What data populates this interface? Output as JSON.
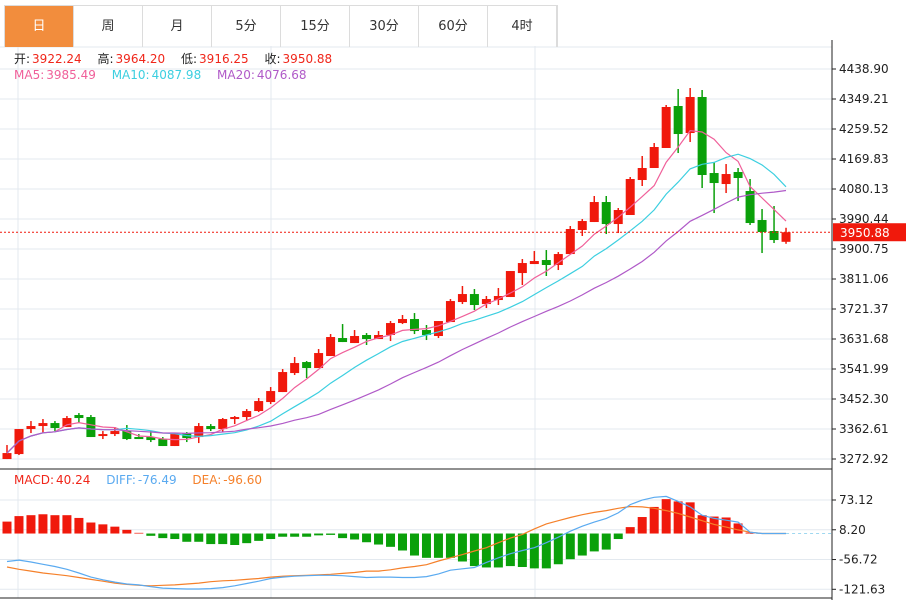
{
  "tabs": [
    "日",
    "周",
    "月",
    "5分",
    "15分",
    "30分",
    "60分",
    "4时"
  ],
  "active_tab": "日",
  "ohlc": {
    "open_label": "开:",
    "open": "3922.24",
    "high_label": "高:",
    "high": "3964.20",
    "low_label": "低:",
    "low": "3916.25",
    "close_label": "收:",
    "close": "3950.88"
  },
  "ma": {
    "ma5_label": "MA5:",
    "ma5": "3985.49",
    "ma10_label": "MA10:",
    "ma10": "4087.98",
    "ma20_label": "MA20:",
    "ma20": "4076.68"
  },
  "macd_info": {
    "macd_label": "MACD:",
    "macd": "40.24",
    "diff_label": "DIFF:",
    "diff": "-76.49",
    "dea_label": "DEA:",
    "dea": "-96.60"
  },
  "colors": {
    "up": "#f0190c",
    "down": "#0aa00a",
    "ma5": "#f0609a",
    "ma10": "#3ccfe0",
    "ma20": "#b05ac8",
    "diff": "#5aaaf0",
    "dea": "#f5802a",
    "accent": "#f28d3d"
  },
  "chart_data": [
    {
      "type": "candlestick",
      "y_ticks": [
        "4438.90",
        "4349.21",
        "4259.52",
        "4169.83",
        "4080.13",
        "3990.44",
        "3900.75",
        "3811.06",
        "3721.37",
        "3631.68",
        "3541.99",
        "3452.30",
        "3362.61",
        "3272.92"
      ],
      "ylim": [
        3272.92,
        4438.9
      ],
      "last_price_label": "3950.88",
      "candles_ohlc_note_order": [
        "open",
        "close",
        "high",
        "low"
      ],
      "candles": [
        [
          3272.8,
          3290.7,
          3314.7,
          3272.8
        ],
        [
          3287.7,
          3362.5,
          3362.5,
          3284.8
        ],
        [
          3362.5,
          3371.5,
          3386.4,
          3350.5
        ],
        [
          3371.5,
          3380.4,
          3392.4,
          3350.5
        ],
        [
          3380.4,
          3365.5,
          3386.4,
          3356.5
        ],
        [
          3368.5,
          3395.4,
          3401.4,
          3368.5
        ],
        [
          3404.4,
          3395.4,
          3410.3,
          3380.4
        ],
        [
          3398.4,
          3338.6,
          3404.4,
          3338.6
        ],
        [
          3341.6,
          3347.5,
          3356.5,
          3332.6
        ],
        [
          3347.5,
          3356.5,
          3368.5,
          3341.6
        ],
        [
          3356.5,
          3332.6,
          3374.5,
          3329.6
        ],
        [
          3338.6,
          3332.6,
          3347.5,
          3332.6
        ],
        [
          3338.6,
          3329.6,
          3356.5,
          3323.6
        ],
        [
          3332.6,
          3311.7,
          3338.6,
          3311.7
        ],
        [
          3311.7,
          3347.5,
          3347.5,
          3311.7
        ],
        [
          3350.5,
          3335.6,
          3353.5,
          3323.6
        ],
        [
          3338.6,
          3371.5,
          3380.4,
          3320.6
        ],
        [
          3371.5,
          3362.5,
          3377.4,
          3356.5
        ],
        [
          3362.5,
          3392.4,
          3395.4,
          3353.5
        ],
        [
          3392.4,
          3398.4,
          3401.4,
          3377.4
        ],
        [
          3398.4,
          3416.3,
          3422.3,
          3386.4
        ],
        [
          3416.3,
          3446.2,
          3455.2,
          3413.3
        ],
        [
          3443.2,
          3476.1,
          3488.1,
          3437.2
        ],
        [
          3473.1,
          3532.9,
          3541.9,
          3473.1
        ],
        [
          3529.9,
          3559.8,
          3577.8,
          3524.0
        ],
        [
          3562.8,
          3544.9,
          3565.8,
          3515.0
        ],
        [
          3544.9,
          3589.7,
          3601.7,
          3544.9
        ],
        [
          3580.8,
          3637.6,
          3646.5,
          3580.8
        ],
        [
          3634.6,
          3622.6,
          3676.4,
          3622.6
        ],
        [
          3619.6,
          3640.6,
          3658.5,
          3619.6
        ],
        [
          3643.6,
          3631.6,
          3649.5,
          3613.7
        ],
        [
          3631.6,
          3643.6,
          3655.5,
          3631.6
        ],
        [
          3643.6,
          3679.4,
          3685.4,
          3625.6
        ],
        [
          3679.4,
          3691.4,
          3703.4,
          3676.4
        ],
        [
          3691.4,
          3655.5,
          3709.3,
          3646.5
        ],
        [
          3658.5,
          3643.6,
          3673.5,
          3628.6
        ],
        [
          3640.6,
          3685.4,
          3685.4,
          3634.6
        ],
        [
          3682.4,
          3745.2,
          3751.2,
          3682.4
        ],
        [
          3742.2,
          3766.1,
          3790.1,
          3736.2
        ],
        [
          3766.1,
          3733.3,
          3781.1,
          3718.3
        ],
        [
          3736.2,
          3751.2,
          3760.2,
          3724.3
        ],
        [
          3748.2,
          3760.2,
          3784.1,
          3733.3
        ],
        [
          3757.2,
          3834.9,
          3834.9,
          3757.2
        ],
        [
          3828.9,
          3858.8,
          3870.8,
          3793.1
        ],
        [
          3855.8,
          3864.8,
          3894.7,
          3855.8
        ],
        [
          3867.8,
          3852.9,
          3897.7,
          3820.0
        ],
        [
          3852.9,
          3885.7,
          3891.7,
          3837.9
        ],
        [
          3885.7,
          3960.5,
          3969.5,
          3885.7
        ],
        [
          3957.5,
          3984.4,
          3990.4,
          3939.6
        ],
        [
          3981.4,
          4041.2,
          4059.2,
          3981.4
        ],
        [
          4041.2,
          3975.4,
          4059.2,
          3945.5
        ],
        [
          3975.4,
          4017.3,
          4023.3,
          3948.5
        ],
        [
          4002.4,
          4110.0,
          4116.0,
          4002.4
        ],
        [
          4107.0,
          4142.9,
          4178.8,
          4089.1
        ],
        [
          4142.9,
          4205.7,
          4217.6,
          4142.9
        ],
        [
          4202.7,
          4325.3,
          4331.3,
          4202.7
        ],
        [
          4328.3,
          4244.5,
          4379.1,
          4187.7
        ],
        [
          4247.5,
          4355.2,
          4382.1,
          4220.6
        ],
        [
          4355.2,
          4122.0,
          4376.1,
          4083.1
        ],
        [
          4127.9,
          4098.0,
          4160.8,
          4008.3
        ],
        [
          4095.0,
          4124.9,
          4154.8,
          4068.1
        ],
        [
          4130.9,
          4113.0,
          4142.9,
          4044.2
        ],
        [
          4074.1,
          3978.4,
          4110.0,
          3972.5
        ],
        [
          3987.4,
          3951.5,
          4020.3,
          3888.7
        ],
        [
          3954.5,
          3927.6,
          4029.3,
          3918.6
        ],
        [
          3922.24,
          3950.88,
          3964.2,
          3916.25
        ]
      ],
      "series": [
        {
          "name": "MA5",
          "window": 5
        },
        {
          "name": "MA10",
          "window": 10
        },
        {
          "name": "MA20",
          "window": 20
        }
      ]
    },
    {
      "type": "macd",
      "y_ticks": [
        "73.12",
        "8.20",
        "-56.72",
        "-121.63"
      ],
      "ylim": [
        -121.63,
        73.12
      ],
      "histogram": [
        26,
        38,
        40,
        42,
        40,
        40,
        34,
        24,
        20,
        15,
        8,
        1.5,
        -5,
        -10,
        -12,
        -18,
        -18,
        -23,
        -23,
        -25,
        -21,
        -16,
        -12,
        -7,
        -7,
        -7,
        -4,
        -3,
        -10,
        -13,
        -19,
        -24,
        -29,
        -37,
        -48,
        -53,
        -53,
        -53,
        -61,
        -71,
        -74,
        -74,
        -71,
        -73,
        -76,
        -76,
        -67,
        -56,
        -48,
        -39,
        -35,
        -12,
        14,
        36,
        58,
        75,
        70,
        68,
        40,
        37,
        35,
        22,
        2,
        0,
        0,
        0
      ],
      "diff": [
        -61,
        -58,
        -62,
        -67,
        -72,
        -78,
        -86,
        -95,
        -101,
        -106,
        -110,
        -112,
        -116,
        -119,
        -120,
        -121,
        -121,
        -120,
        -118,
        -114,
        -109,
        -104,
        -98,
        -95,
        -93,
        -92,
        -91,
        -91,
        -92,
        -94,
        -96,
        -95,
        -95,
        -96,
        -96,
        -94,
        -88,
        -80,
        -77,
        -74,
        -63,
        -53,
        -44,
        -37,
        -31,
        -20,
        -8,
        5,
        16,
        25,
        33,
        45,
        63,
        73,
        79,
        81,
        70,
        58,
        40,
        33,
        29,
        25,
        3,
        0,
        0,
        0
      ],
      "dea": [
        -73,
        -78,
        -82,
        -86,
        -89,
        -92,
        -96,
        -100,
        -104,
        -108,
        -111,
        -113,
        -114,
        -113,
        -112,
        -110,
        -108,
        -105,
        -103,
        -102,
        -100,
        -98,
        -95,
        -93,
        -92,
        -91,
        -90,
        -89,
        -87,
        -85,
        -82,
        -82,
        -79,
        -75,
        -72,
        -68,
        -60,
        -53,
        -46,
        -38,
        -31,
        -20,
        -10,
        -2,
        10,
        21,
        28,
        35,
        41,
        46,
        50,
        55,
        59,
        58,
        55,
        50,
        44,
        36,
        28,
        20,
        14,
        8,
        3,
        0,
        0,
        0
      ]
    }
  ]
}
